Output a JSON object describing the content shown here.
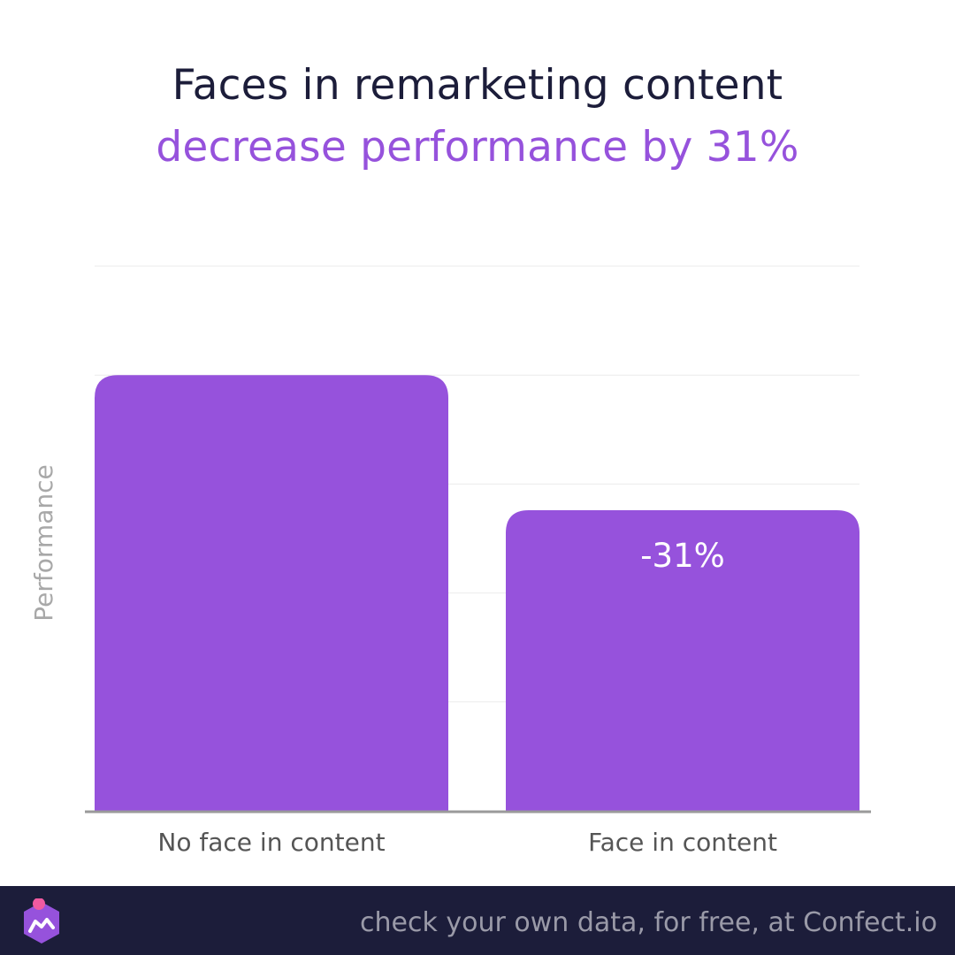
{
  "title": {
    "line1": "Faces in remarketing content",
    "line2": "decrease performance by 31%"
  },
  "colors": {
    "title": "#1c1d3a",
    "accent": "#9652dc",
    "bar": "#9652dc",
    "grid": "#ebebeb",
    "axis": "#9a9a9a",
    "label": "#555555",
    "footer_bg": "#1c1d3a",
    "footer_text": "#9a9aa8",
    "logo_dot": "#f05aa0"
  },
  "chart_data": {
    "type": "bar",
    "categories": [
      "No face in content",
      "Face in content"
    ],
    "values": [
      100,
      69
    ],
    "data_labels": [
      "",
      "-31%"
    ],
    "ylabel": "Performance",
    "ylim": [
      0,
      125
    ],
    "grid": true,
    "gridline_values": [
      25,
      50,
      75,
      100,
      125
    ]
  },
  "footer": {
    "text": "check your own data, for free, at Confect.io",
    "logo_icon": "confect-logo-icon"
  }
}
